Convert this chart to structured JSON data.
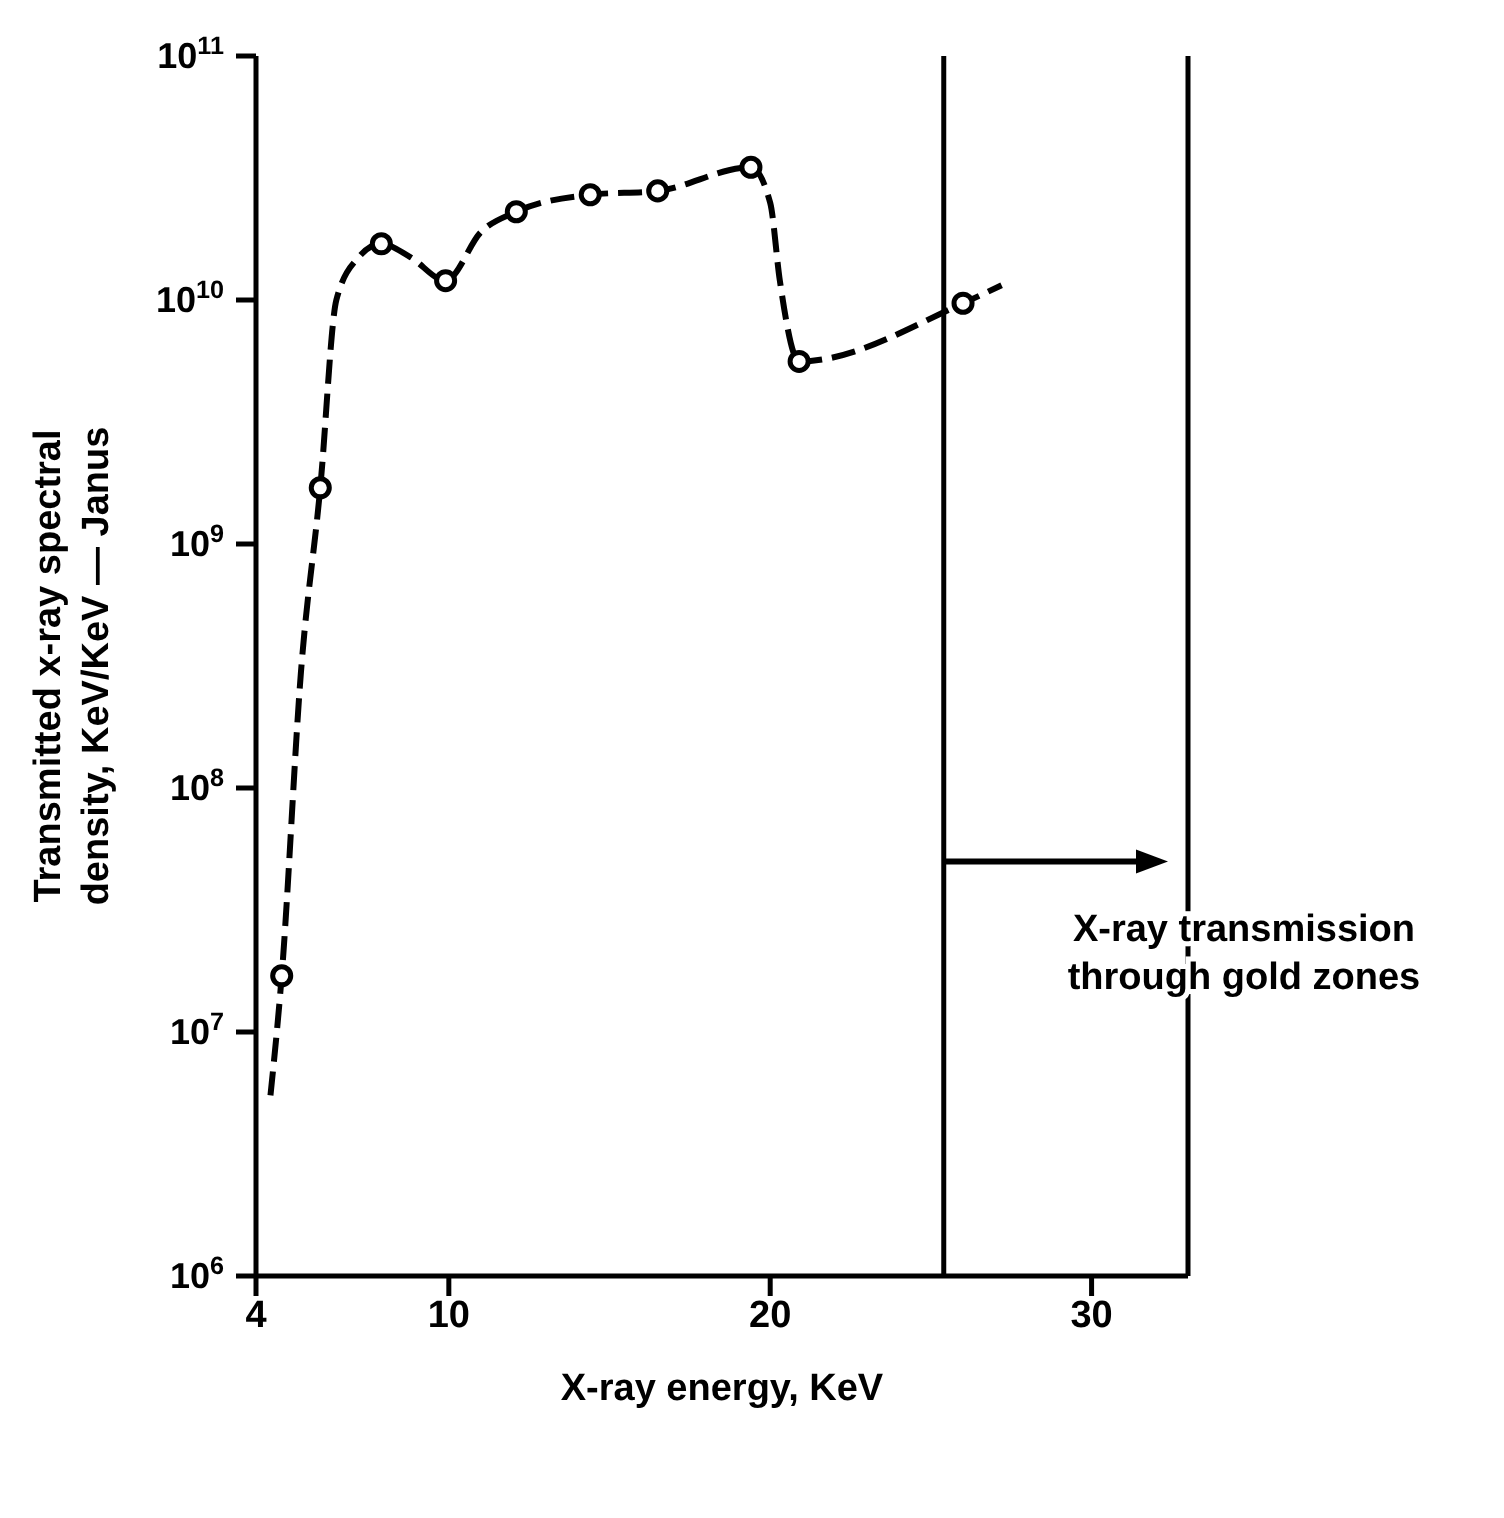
{
  "chart_data": {
    "type": "line",
    "xlabel": "X-ray energy, KeV",
    "ylabel": "Transmitted x-ray spectral\ndensity, KeV/KeV — Janus",
    "log": "y",
    "xlim": [
      4,
      33
    ],
    "xticks": [
      4,
      10,
      20,
      30
    ],
    "ylim": [
      1000000,
      100000000000
    ],
    "yticks": [
      {
        "value": 1000000,
        "label": "10$^{6}$"
      },
      {
        "value": 10000000,
        "label": "10$^{7}$"
      },
      {
        "value": 100000000,
        "label": "10$^{8}$"
      },
      {
        "value": 1000000000,
        "label": "10$^{9}$"
      },
      {
        "value": 10000000000,
        "label": "10$^{10}$"
      },
      {
        "value": 100000000000,
        "label": "10$^{11}$"
      }
    ],
    "series": [
      {
        "color": "#000000",
        "line_style": "dashed",
        "marker": "none",
        "x": [
          4.45,
          4.8,
          5.4,
          6.0,
          6.5,
          7.2,
          7.9,
          8.8,
          9.9,
          11,
          12.1,
          14.4,
          16.5,
          19.4,
          20,
          20.3,
          20.9,
          26.0,
          27.2
        ],
        "values": [
          5500000,
          17000000,
          300000000,
          1700000000,
          10000000000,
          15000000000,
          17000000000,
          15000000000,
          12000000000,
          19000000000,
          23000000000,
          27000000000,
          28000000000,
          35000000000,
          25000000000,
          12000000000,
          5600000000,
          9700000000,
          11500000000
        ]
      },
      {
        "type": "scatter",
        "color": "#000000",
        "marker": "circle",
        "x": [
          4.8,
          6.0,
          7.9,
          9.9,
          12.1,
          14.4,
          16.5,
          19.4,
          20.9,
          26.0
        ],
        "values": [
          17000000,
          1700000000,
          17000000000,
          12000000000,
          23000000000,
          27000000000,
          28000000000,
          35000000000,
          5600000000,
          9700000000
        ]
      }
    ],
    "ref_lines": [
      {
        "axis": "x",
        "value": 25.4,
        "color": "#000000",
        "line_style": "solid"
      }
    ],
    "annotations": [
      {
        "text": "X-ray transmission through gold zones",
        "x": 25.4,
        "y": 50000000
      }
    ]
  }
}
